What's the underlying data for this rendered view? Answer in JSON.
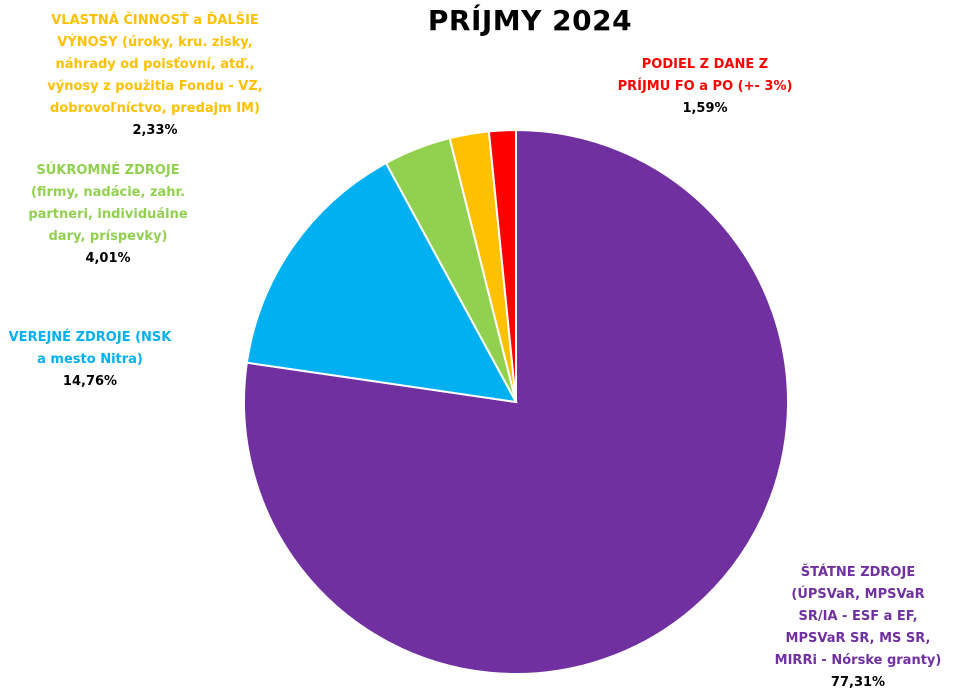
{
  "chart_data": {
    "type": "pie",
    "title": "PRÍJMY 2024",
    "slices": [
      {
        "label": "ŠTÁTNE ZDROJE\n(ÚPSVaR, MPSVaR\nSR/IA - ESF a EF,\nMPSVaR SR, MS SR,\nMIRRi - Nórske granty)",
        "value": 77.31,
        "value_label": "77,31%",
        "color": "#7030A0"
      },
      {
        "label": "VEREJNÉ ZDROJE  (NSK\na mesto Nitra)",
        "value": 14.76,
        "value_label": "14,76%",
        "color": "#00B0F0"
      },
      {
        "label": "SÚKROMNÉ ZDROJE\n(firmy, nadácie, zahr.\npartneri, individuálne\ndary, príspevky)",
        "value": 4.01,
        "value_label": "4,01%",
        "color": "#92D050"
      },
      {
        "label": "VLASTNÁ ČINNOSŤ a ĎALŠIE\nVÝNOSY (úroky, kru. zisky,\nnáhrady od poisťovní, atď.,\nvýnosy z použitia Fondu - VZ,\ndobrovoľníctvo, predajm IM)",
        "value": 2.33,
        "value_label": "2,33%",
        "color": "#FFC000"
      },
      {
        "label": "PODIEL Z DANE Z\nPRÍJMU FO a PO (+- 3%)",
        "value": 1.59,
        "value_label": "1,59%",
        "color": "#FF0000"
      }
    ]
  }
}
